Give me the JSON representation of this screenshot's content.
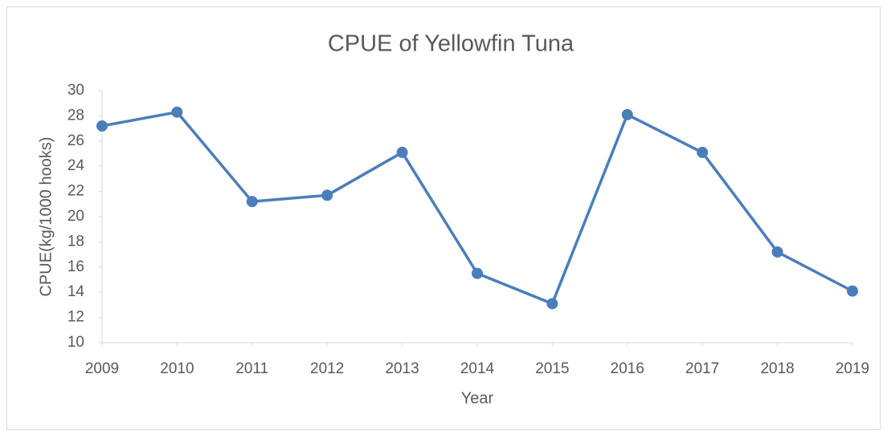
{
  "chart_data": {
    "type": "line",
    "title": "CPUE of Yellowfin Tuna",
    "x_label": "Year",
    "y_label": "CPUE(kg/1000 hooks)",
    "x": [
      2009,
      2010,
      2011,
      2012,
      2013,
      2014,
      2015,
      2016,
      2017,
      2018,
      2019
    ],
    "series": [
      {
        "name": "CPUE",
        "color": "#4a7ebb",
        "values": [
          27.2,
          28.3,
          21.2,
          21.7,
          25.1,
          15.5,
          13.1,
          28.1,
          25.1,
          17.2,
          14.1
        ]
      }
    ],
    "xlim": [
      2009,
      2019
    ],
    "xticks": [
      2009,
      2010,
      2011,
      2012,
      2013,
      2014,
      2015,
      2016,
      2017,
      2018,
      2019
    ],
    "ylim": [
      10,
      30
    ],
    "yticks": [
      10,
      12,
      14,
      16,
      18,
      20,
      22,
      24,
      26,
      28,
      30
    ],
    "grid": false,
    "markers": true
  }
}
